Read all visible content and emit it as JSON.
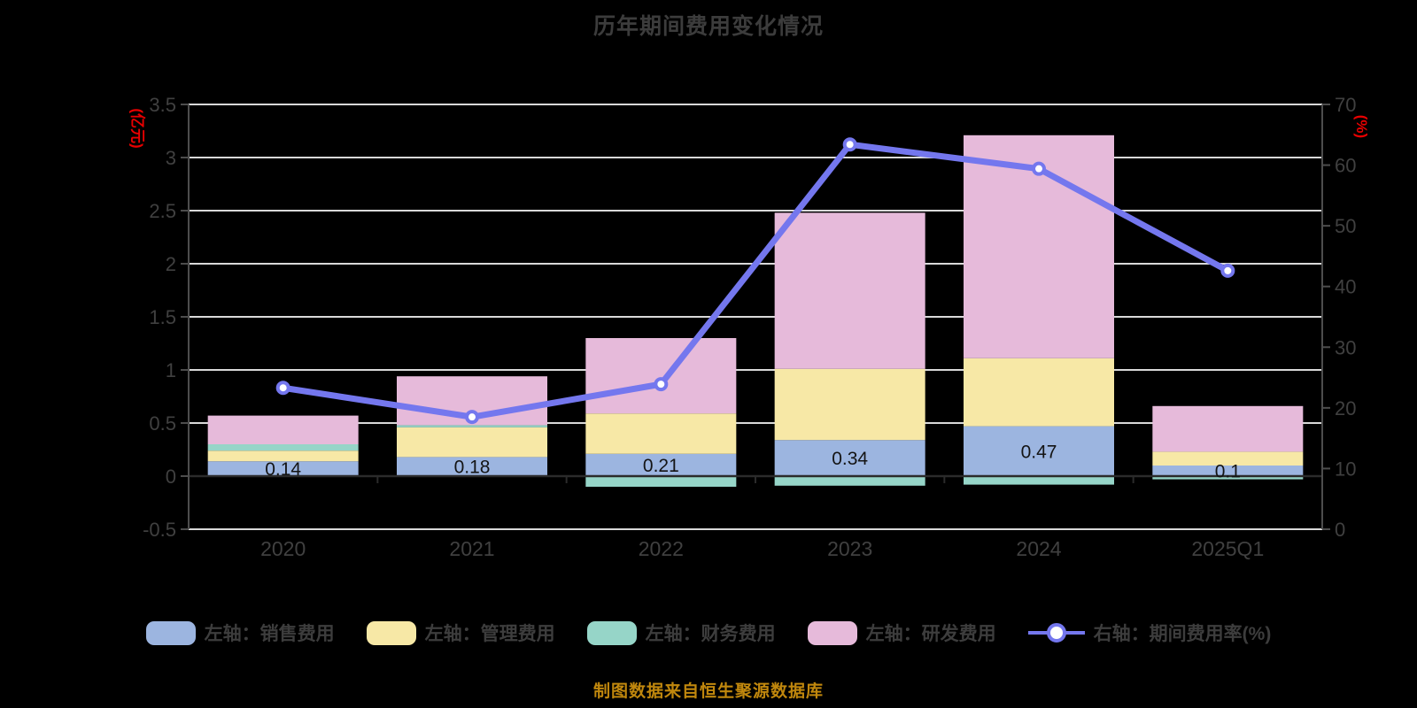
{
  "title": "历年期间费用变化情况",
  "footer": "制图数据来自恒生聚源数据库",
  "left_axis": {
    "unit": "(亿元)",
    "min": -0.5,
    "max": 3.5,
    "ticks": [
      "3.5",
      "3",
      "2.5",
      "2",
      "1.5",
      "1",
      "0.5",
      "0",
      "-0.5"
    ]
  },
  "right_axis": {
    "unit": "(%)",
    "min": 0,
    "max": 70,
    "ticks": [
      "70",
      "60",
      "50",
      "40",
      "30",
      "20",
      "10",
      "0"
    ]
  },
  "colors": {
    "background": "#000000",
    "title_text": "#3c3c3c",
    "axis_text": "#404040",
    "axis_line": "#4d4d4d",
    "grid_line": "#d9d9d9",
    "zero_line": "#2b2b2b",
    "unit_text": "#e80000",
    "bar_label_text": "#141414",
    "legend_text": "#3d3d3d",
    "footer_text": "#c0870d",
    "sales": "#9cb5e0",
    "admin": "#f7e8a6",
    "finance": "#96d5c8",
    "rd": "#e6bada",
    "line": "#7477ee",
    "marker_fill": "#ffffff"
  },
  "chart_data": {
    "type": "bar",
    "subtype": "stacked bars (left axis) + line (right axis)",
    "categories": [
      "2020",
      "2021",
      "2022",
      "2023",
      "2024",
      "2025Q1"
    ],
    "series": [
      {
        "name": "左轴：销售费用",
        "type": "bar",
        "axis": "left",
        "color_key": "sales",
        "values": [
          0.14,
          0.18,
          0.21,
          0.34,
          0.47,
          0.1
        ]
      },
      {
        "name": "左轴：管理费用",
        "type": "bar",
        "axis": "left",
        "color_key": "admin",
        "values": [
          0.1,
          0.28,
          0.38,
          0.67,
          0.64,
          0.13
        ]
      },
      {
        "name": "左轴：财务费用",
        "type": "bar",
        "axis": "left",
        "color_key": "finance",
        "values": [
          0.06,
          0.02,
          -0.1,
          -0.09,
          -0.08,
          -0.03
        ]
      },
      {
        "name": "左轴：研发费用",
        "type": "bar",
        "axis": "left",
        "color_key": "rd",
        "values": [
          0.27,
          0.46,
          0.71,
          1.47,
          2.1,
          0.43
        ]
      },
      {
        "name": "右轴：期间费用率(%)",
        "type": "line",
        "axis": "right",
        "color_key": "line",
        "values": [
          23.3,
          18.5,
          23.9,
          63.4,
          59.4,
          42.6
        ]
      }
    ],
    "bar_labels": [
      "0.14",
      "0.18",
      "0.21",
      "0.34",
      "0.47",
      "0.1"
    ],
    "title": "历年期间费用变化情况",
    "xlabel": "",
    "ylabel_left": "(亿元)",
    "ylabel_right": "(%)",
    "ylim_left": [
      -0.5,
      3.5
    ],
    "ylim_right": [
      0,
      70
    ],
    "grid": true,
    "legend_position": "bottom"
  }
}
